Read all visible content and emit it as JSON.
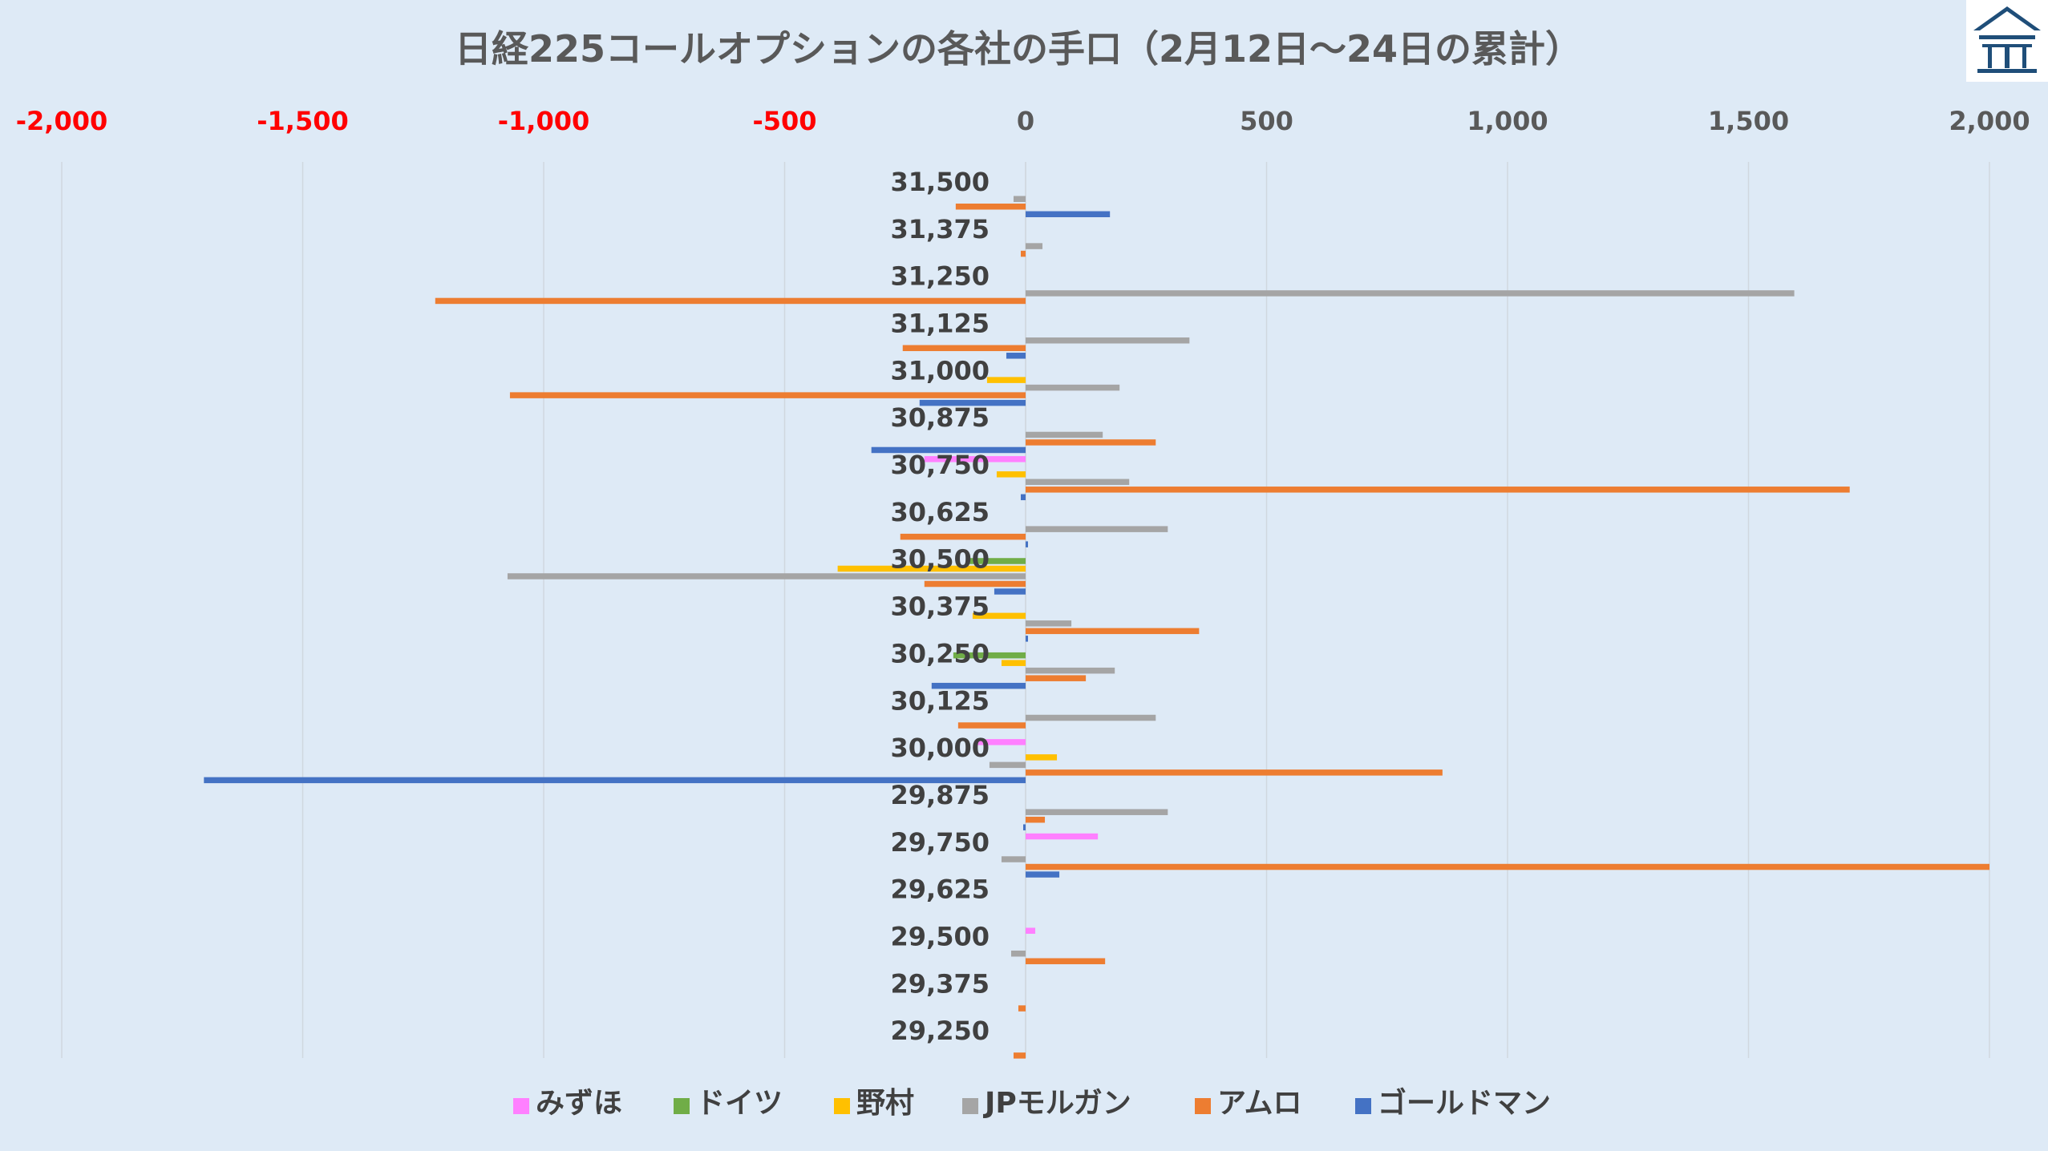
{
  "chart_data": {
    "type": "bar",
    "orientation": "horizontal",
    "title": "日経225コールオプションの各社の手口（2月12日～24日の累計）",
    "xlabel": "",
    "ylabel": "",
    "xlim": [
      -2000,
      2000
    ],
    "x_ticks": [
      -2000,
      -1500,
      -1000,
      -500,
      0,
      500,
      1000,
      1500,
      2000
    ],
    "x_tick_labels": [
      "-2,000",
      "-1,500",
      "-1,000",
      "-500",
      "0",
      "500",
      "1,000",
      "1,500",
      "2,000"
    ],
    "negative_tick_color": "#ff0000",
    "positive_tick_color": "#595959",
    "grid": "vertical",
    "legend_position": "bottom",
    "categories": [
      "31,500",
      "31,375",
      "31,250",
      "31,125",
      "31,000",
      "30,875",
      "30,750",
      "30,625",
      "30,500",
      "30,375",
      "30,250",
      "30,125",
      "30,000",
      "29,875",
      "29,750",
      "29,625",
      "29,500",
      "29,375",
      "29,250"
    ],
    "series": [
      {
        "name": "みずほ",
        "color": "#ff80ff",
        "values": [
          0,
          0,
          0,
          0,
          0,
          0,
          -210,
          0,
          0,
          0,
          0,
          0,
          -100,
          0,
          150,
          0,
          20,
          0,
          0
        ]
      },
      {
        "name": "ドイツ",
        "color": "#70ad47",
        "values": [
          0,
          0,
          0,
          0,
          0,
          0,
          0,
          0,
          -120,
          0,
          -150,
          0,
          0,
          0,
          0,
          0,
          0,
          0,
          0
        ]
      },
      {
        "name": "野村",
        "color": "#ffc000",
        "values": [
          0,
          0,
          0,
          0,
          -80,
          0,
          -60,
          0,
          -390,
          -110,
          -50,
          0,
          65,
          0,
          0,
          0,
          0,
          0,
          0
        ]
      },
      {
        "name": "JPモルガン",
        "color": "#a5a5a5",
        "values": [
          -25,
          35,
          1595,
          340,
          195,
          160,
          215,
          295,
          -1075,
          95,
          185,
          270,
          -75,
          295,
          -50,
          0,
          -30,
          0,
          0
        ]
      },
      {
        "name": "アムロ",
        "color": "#ed7d31",
        "values": [
          -145,
          -10,
          -1225,
          -255,
          -1070,
          270,
          1710,
          -260,
          -210,
          360,
          125,
          -140,
          865,
          40,
          2000,
          0,
          165,
          -15,
          -25
        ]
      },
      {
        "name": "ゴールドマン",
        "color": "#4472c4",
        "values": [
          175,
          0,
          0,
          -40,
          -220,
          -320,
          -10,
          5,
          -65,
          5,
          -195,
          0,
          -1705,
          -5,
          70,
          0,
          0,
          0,
          0
        ]
      }
    ]
  },
  "logo": {
    "name": "shrine-logo"
  }
}
